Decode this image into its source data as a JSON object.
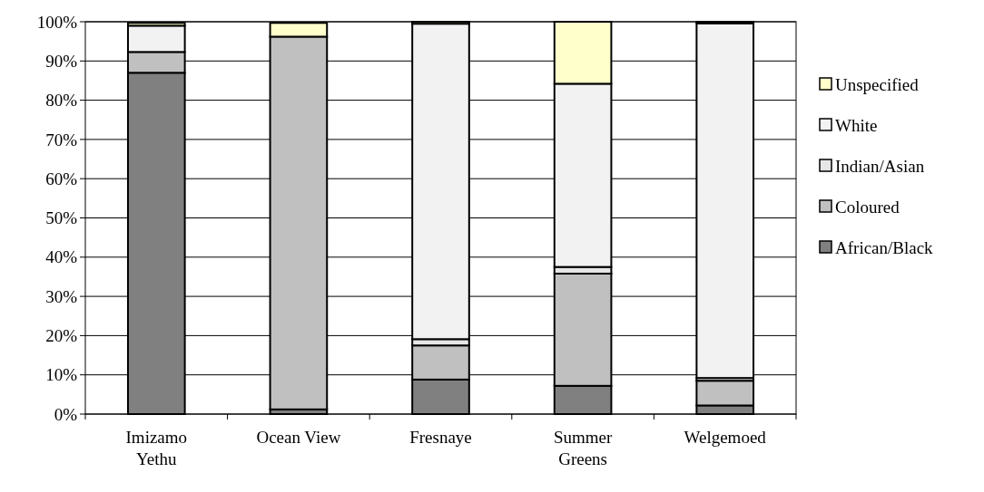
{
  "chart_data": {
    "type": "bar",
    "stacked": true,
    "categories": [
      "Imizamo Yethu",
      "Ocean View",
      "Fresnaye",
      "Summer Greens",
      "Welgemoed"
    ],
    "series": [
      {
        "name": "African/Black",
        "color": "#808080",
        "values": [
          87,
          1.2,
          8.8,
          7.2,
          2.2
        ]
      },
      {
        "name": "Coloured",
        "color": "#c0c0c0",
        "values": [
          5.3,
          95,
          8.7,
          28.6,
          6.3
        ]
      },
      {
        "name": "Indian/Asian",
        "color": "#e6e6e6",
        "values": [
          null,
          null,
          1.6,
          1.7,
          0.7
        ]
      },
      {
        "name": "White",
        "color": "#f2f2f2",
        "values": [
          6.7,
          0,
          80.4,
          46.7,
          90.4
        ]
      },
      {
        "name": "Unspecified",
        "color": "#ffffcc",
        "values": [
          0.7,
          3.5,
          0.5,
          15.8,
          0.4
        ]
      }
    ],
    "ylim": [
      0,
      100
    ],
    "yticks": [
      {
        "value": 0,
        "label": "0%"
      },
      {
        "value": 10,
        "label": "10%"
      },
      {
        "value": 20,
        "label": "20%"
      },
      {
        "value": 30,
        "label": "30%"
      },
      {
        "value": 40,
        "label": "40%"
      },
      {
        "value": 50,
        "label": "50%"
      },
      {
        "value": 60,
        "label": "60%"
      },
      {
        "value": 70,
        "label": "70%"
      },
      {
        "value": 80,
        "label": "80%"
      },
      {
        "value": 90,
        "label": "90%"
      },
      {
        "value": 100,
        "label": "100%"
      }
    ],
    "grid": "y",
    "legend": "right"
  }
}
